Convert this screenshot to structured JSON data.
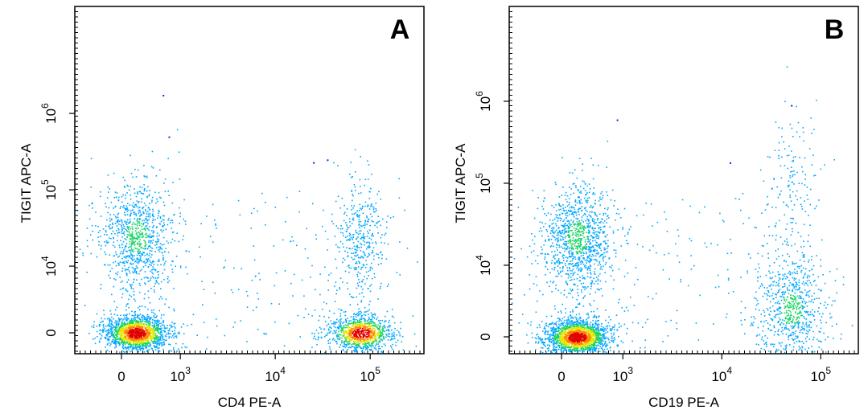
{
  "chart_data": [
    {
      "type": "scatter",
      "panel_label": "A",
      "xlabel": "CD4 PE-A",
      "ylabel": "TIGIT APC-A",
      "x_scale": "biexponential",
      "y_scale": "biexponential",
      "x_ticks": [
        {
          "value": 0,
          "base": "0",
          "exp": ""
        },
        {
          "value": 1000,
          "base": "10",
          "exp": "3"
        },
        {
          "value": 10000,
          "base": "10",
          "exp": "4"
        },
        {
          "value": 100000,
          "base": "10",
          "exp": "5"
        }
      ],
      "y_ticks": [
        {
          "value": 0,
          "base": "0",
          "exp": ""
        },
        {
          "value": 10000,
          "base": "10",
          "exp": "4"
        },
        {
          "value": 100000,
          "base": "10",
          "exp": "5"
        },
        {
          "value": 1000000,
          "base": "10",
          "exp": "6"
        }
      ],
      "populations": [
        {
          "name": "CD4- TIGIT- (dense)",
          "x_center": 250,
          "y_center": 0,
          "n": 3000,
          "density": "high"
        },
        {
          "name": "CD4- TIGIT+",
          "x_center": 250,
          "y_center": 25000,
          "n": 1600,
          "density": "medium"
        },
        {
          "name": "CD4+ TIGIT- (dense)",
          "x_center": 80000,
          "y_center": 0,
          "n": 1800,
          "density": "high"
        },
        {
          "name": "CD4+ TIGIT+",
          "x_center": 80000,
          "y_center": 22000,
          "n": 700,
          "density": "low"
        }
      ],
      "outliers": [
        {
          "x": 700,
          "y": 1750000
        },
        {
          "x": 800,
          "y": 500000
        },
        {
          "x": 35000,
          "y": 250000
        },
        {
          "x": 25000,
          "y": 230000
        }
      ]
    },
    {
      "type": "scatter",
      "panel_label": "B",
      "xlabel": "CD19 PE-A",
      "ylabel": "TIGIT APC-A",
      "x_scale": "biexponential",
      "y_scale": "biexponential",
      "x_ticks": [
        {
          "value": 0,
          "base": "0",
          "exp": ""
        },
        {
          "value": 1000,
          "base": "10",
          "exp": "3"
        },
        {
          "value": 10000,
          "base": "10",
          "exp": "4"
        },
        {
          "value": 100000,
          "base": "10",
          "exp": "5"
        }
      ],
      "y_ticks": [
        {
          "value": 0,
          "base": "0",
          "exp": ""
        },
        {
          "value": 10000,
          "base": "10",
          "exp": "4"
        },
        {
          "value": 100000,
          "base": "10",
          "exp": "5"
        },
        {
          "value": 1000000,
          "base": "10",
          "exp": "6"
        }
      ],
      "populations": [
        {
          "name": "CD19- TIGIT- (dense)",
          "x_center": 250,
          "y_center": 0,
          "n": 3400,
          "density": "high"
        },
        {
          "name": "CD19- TIGIT+",
          "x_center": 250,
          "y_center": 22000,
          "n": 1900,
          "density": "medium"
        },
        {
          "name": "CD19+ TIGIT low",
          "x_center": 50000,
          "y_center": 3000,
          "n": 1300,
          "density": "medium"
        },
        {
          "name": "CD19+ TIGIT+",
          "x_center": 50000,
          "y_center": 120000,
          "n": 250,
          "density": "low"
        }
      ],
      "outliers": [
        {
          "x": 900,
          "y": 600000
        },
        {
          "x": 50000,
          "y": 900000
        },
        {
          "x": 12000,
          "y": 180000
        }
      ]
    }
  ]
}
